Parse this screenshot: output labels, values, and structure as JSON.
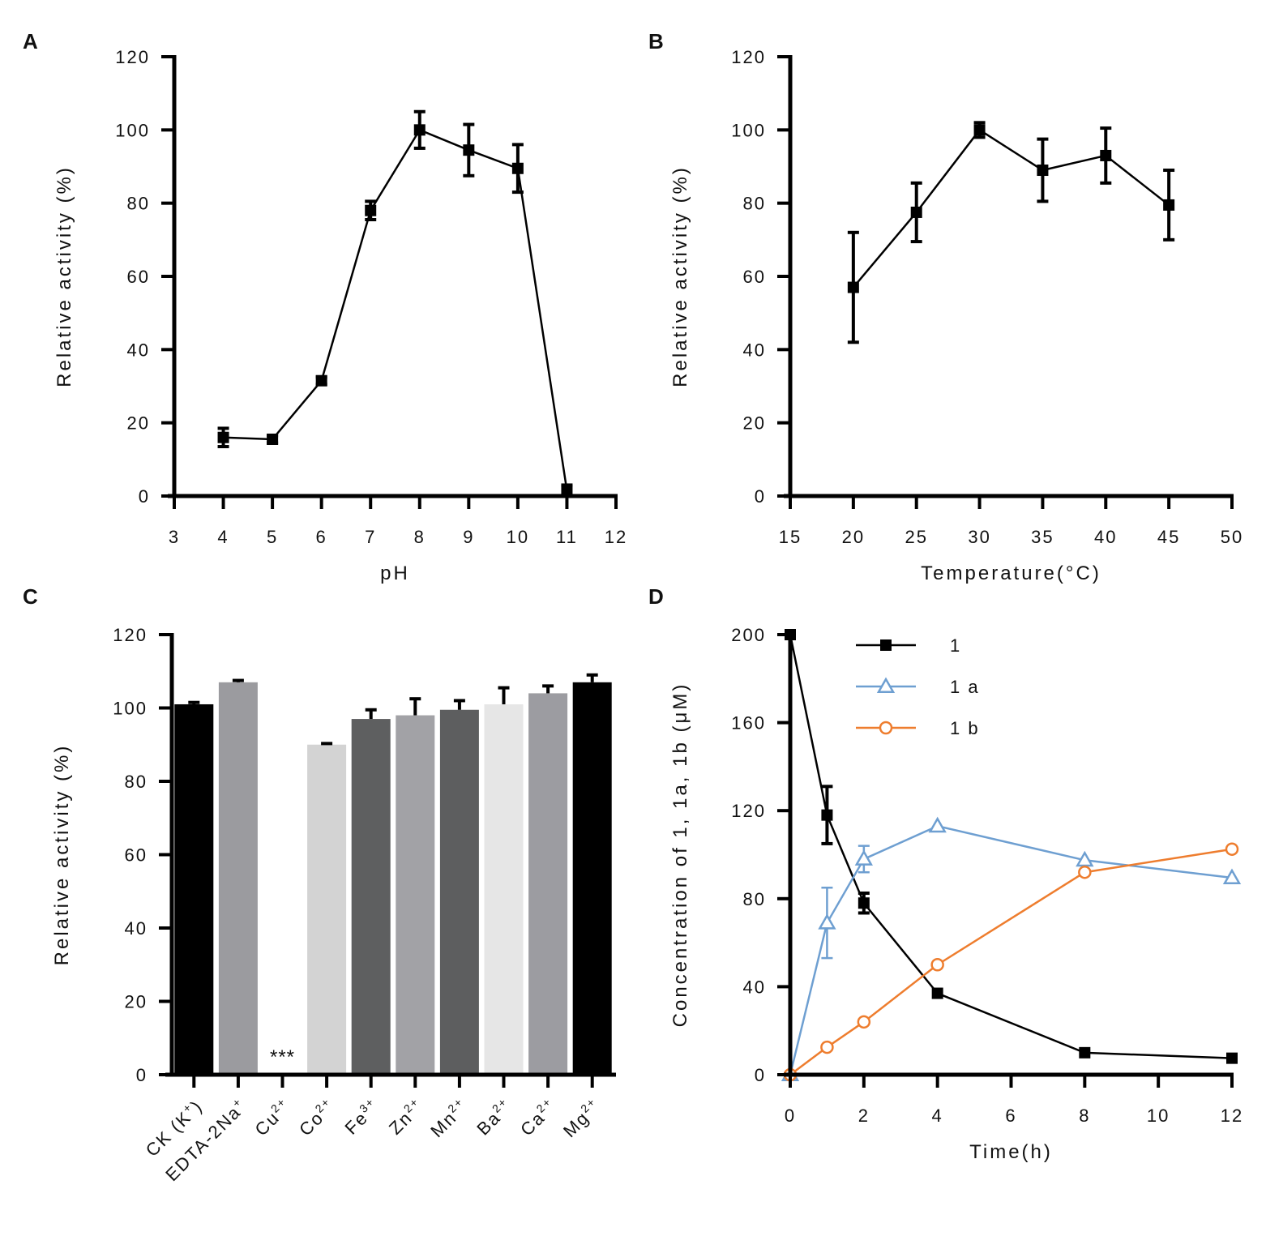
{
  "chart_data": [
    {
      "panel": "A",
      "type": "line",
      "title": "",
      "xlabel": "pH",
      "ylabel": "Relative activity (%)",
      "xlim": [
        3,
        12
      ],
      "ylim": [
        0,
        120
      ],
      "xticks": [
        3,
        4,
        5,
        6,
        7,
        8,
        9,
        10,
        11,
        12
      ],
      "yticks": [
        0,
        20,
        40,
        60,
        80,
        100,
        120
      ],
      "grid": false,
      "series": [
        {
          "name": "pH activity",
          "color": "#000000",
          "marker": "square",
          "x": [
            4,
            5,
            6,
            7,
            8,
            9,
            10,
            11
          ],
          "y": [
            16,
            15.5,
            31.5,
            78,
            100,
            94.5,
            89.5,
            1.5
          ],
          "err": [
            2.5,
            1,
            1,
            2.5,
            5,
            7,
            6.5,
            1.5
          ]
        }
      ]
    },
    {
      "panel": "B",
      "type": "line",
      "title": "",
      "xlabel": "Temperature(°C)",
      "ylabel": "Relative activity (%)",
      "xlim": [
        15,
        50
      ],
      "ylim": [
        0,
        120
      ],
      "xticks": [
        15,
        20,
        25,
        30,
        35,
        40,
        45,
        50
      ],
      "yticks": [
        0,
        20,
        40,
        60,
        80,
        100,
        120
      ],
      "grid": false,
      "series": [
        {
          "name": "Temperature activity",
          "color": "#000000",
          "marker": "square",
          "x": [
            20,
            25,
            30,
            35,
            40,
            45
          ],
          "y": [
            57,
            77.5,
            100,
            89,
            93,
            79.5
          ],
          "err": [
            15,
            8,
            2,
            8.5,
            7.5,
            9.5
          ]
        }
      ]
    },
    {
      "panel": "C",
      "type": "bar",
      "title": "",
      "xlabel": "",
      "ylabel": "Relative activity (%)",
      "ylim": [
        0,
        120
      ],
      "yticks": [
        0,
        20,
        40,
        60,
        80,
        100,
        120
      ],
      "grid": false,
      "categories": [
        {
          "base": "CK (K",
          "sup": "+",
          "tail": ")"
        },
        {
          "base": "EDTA-2Na",
          "sup": "+",
          "tail": ""
        },
        {
          "base": "Cu",
          "sup": "2+",
          "tail": ""
        },
        {
          "base": "Co",
          "sup": "2+",
          "tail": ""
        },
        {
          "base": "Fe",
          "sup": "3+",
          "tail": ""
        },
        {
          "base": "Zn",
          "sup": "2+",
          "tail": ""
        },
        {
          "base": "Mn",
          "sup": "2+",
          "tail": ""
        },
        {
          "base": "Ba",
          "sup": "2+",
          "tail": ""
        },
        {
          "base": "Ca",
          "sup": "2+",
          "tail": ""
        },
        {
          "base": "Mg",
          "sup": "2+",
          "tail": ""
        }
      ],
      "values": [
        101,
        107,
        0.5,
        90,
        97,
        98,
        99.5,
        101,
        104,
        107
      ],
      "err": [
        0.5,
        0.5,
        0,
        0.3,
        2.5,
        4.5,
        2.5,
        4.5,
        2,
        2
      ],
      "colors": [
        "#000000",
        "#9b9b9f",
        "#d8d8d8",
        "#d3d3d3",
        "#5e5f60",
        "#a2a2a6",
        "#5d5e5f",
        "#e6e6e6",
        "#9c9ca1",
        "#000000"
      ],
      "annotations": [
        {
          "category_index": 2,
          "text": "***"
        }
      ]
    },
    {
      "panel": "D",
      "type": "line",
      "title": "",
      "xlabel": "Time(h)",
      "ylabel": "Concentration of 1, 1a, 1b (μM)",
      "xlim": [
        0,
        12
      ],
      "ylim": [
        0,
        200
      ],
      "xticks": [
        0,
        2,
        4,
        6,
        8,
        10,
        12
      ],
      "yticks": [
        0,
        40,
        80,
        120,
        160,
        200
      ],
      "grid": false,
      "legend": "top-center",
      "series": [
        {
          "name": "1",
          "color": "#000000",
          "marker": "square",
          "x": [
            0,
            1,
            2,
            4,
            8,
            12
          ],
          "y": [
            200,
            118,
            78,
            37,
            10,
            7.5
          ],
          "err": [
            0,
            13,
            4.5,
            0,
            0,
            0
          ]
        },
        {
          "name": "1 a",
          "color": "#6e9fd1",
          "marker": "triangle",
          "x": [
            0,
            1,
            2,
            4,
            8,
            12
          ],
          "y": [
            0,
            69,
            98,
            113,
            97.5,
            89.5
          ],
          "err": [
            0,
            16,
            6,
            0,
            0,
            0
          ]
        },
        {
          "name": "1 b",
          "color": "#ee7d2e",
          "marker": "circle",
          "x": [
            0,
            1,
            2,
            4,
            8,
            12
          ],
          "y": [
            0,
            12.5,
            24,
            50,
            92,
            102.5
          ],
          "err": [
            0,
            0,
            0,
            0,
            0,
            0
          ]
        }
      ]
    }
  ]
}
